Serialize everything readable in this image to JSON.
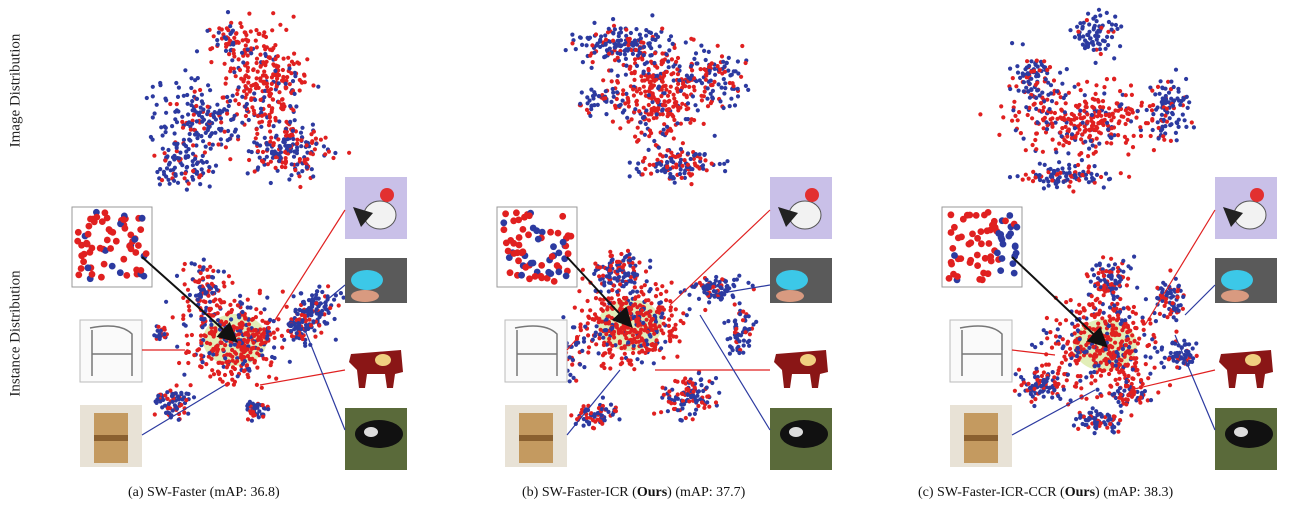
{
  "row_labels": {
    "image": "Image Distribution",
    "instance": "Instance Distribution"
  },
  "panels": [
    {
      "id": "a",
      "prefix": "(a) SW-Faster",
      "bold": "",
      "suffix": " (mAP: 36.8)"
    },
    {
      "id": "b",
      "prefix": "(b) SW-Faster-ICR (",
      "bold": "Ours",
      "suffix": ") (mAP: 37.7)"
    },
    {
      "id": "c",
      "prefix": "(c) SW-Faster-ICR-CCR (",
      "bold": "Ours",
      "suffix": ") (mAP: 38.3)"
    }
  ],
  "colors": {
    "domain_a": "#e02020",
    "domain_b": "#2c3aa0",
    "highlight": "#d8e8a0",
    "arrow": "#111111"
  },
  "thumbnails": [
    "bird-cartoon",
    "bird-photo",
    "cow-cartoon",
    "cow-photo",
    "chair-sketch",
    "chair-photo"
  ]
}
